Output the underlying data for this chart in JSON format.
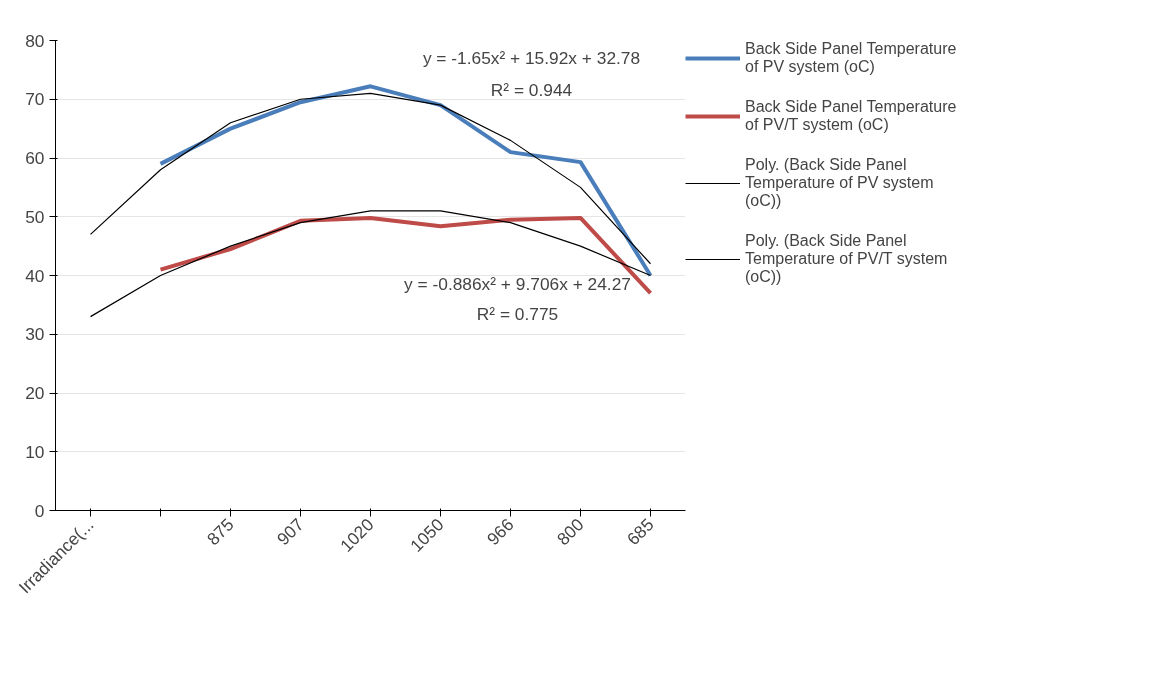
{
  "chart_data": {
    "type": "line",
    "categories": [
      "Irradiance(...",
      null,
      "875",
      "907",
      "1020",
      "1050",
      "966",
      "800",
      "685"
    ],
    "series": [
      {
        "name": "Back Side Panel Temperature of PV system (oC)",
        "color": "#4a7ebb",
        "values": [
          null,
          59,
          65,
          69.5,
          72.2,
          69,
          61,
          59.3,
          40
        ]
      },
      {
        "name": "Back Side Panel Temperature of PV/T system (oC)",
        "color": "#be4b48",
        "values": [
          null,
          41,
          44.5,
          49.3,
          49.8,
          48.4,
          49.5,
          49.8,
          37
        ]
      },
      {
        "name": "Poly. (Back Side Panel Temperature of PV system (oC))",
        "color": "#000000",
        "type": "line",
        "values": [
          47,
          58,
          66,
          70,
          71,
          69,
          63,
          55,
          42
        ]
      },
      {
        "name": "Poly. (Back Side Panel Temperature of PV/T system (oC))",
        "color": "#000000",
        "type": "line",
        "values": [
          33,
          40,
          45,
          49,
          51,
          51,
          49,
          45,
          40
        ]
      }
    ],
    "annotations": [
      "y = -1.65x² + 15.92x + 32.78",
      "R² = 0.944",
      "y = -0.886x² + 9.706x + 24.27",
      "R² = 0.775"
    ],
    "ylim": [
      0,
      80
    ],
    "yticks": [
      0,
      10,
      20,
      30,
      40,
      50,
      60,
      70,
      80
    ],
    "grid": "y",
    "legend": "right"
  }
}
